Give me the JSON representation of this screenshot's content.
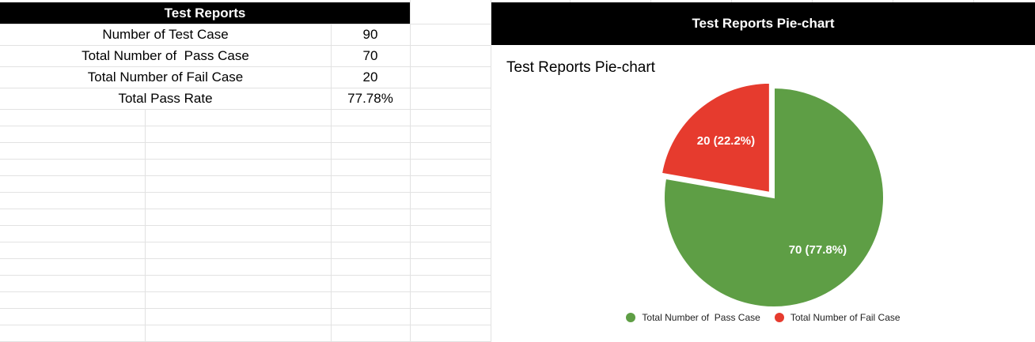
{
  "table": {
    "header": "Test Reports",
    "rows": [
      {
        "label": "Number of Test Case",
        "value": "90"
      },
      {
        "label": "Total Number of  Pass Case",
        "value": "70"
      },
      {
        "label": "Total Number of Fail Case",
        "value": "20"
      },
      {
        "label": "Total Pass Rate",
        "value": "77.78%"
      }
    ]
  },
  "chart_header": "Test Reports Pie-chart",
  "colors": {
    "pass": "#5e9e45",
    "fail": "#e63b2e"
  },
  "chart_data": {
    "type": "pie",
    "title": "Test Reports Pie-chart",
    "categories": [
      "Total Number of  Pass Case",
      "Total Number of Fail Case"
    ],
    "values": [
      70,
      20
    ],
    "data_labels": [
      "70 (77.8%)",
      "20 (22.2%)"
    ],
    "legend": "bottom"
  }
}
